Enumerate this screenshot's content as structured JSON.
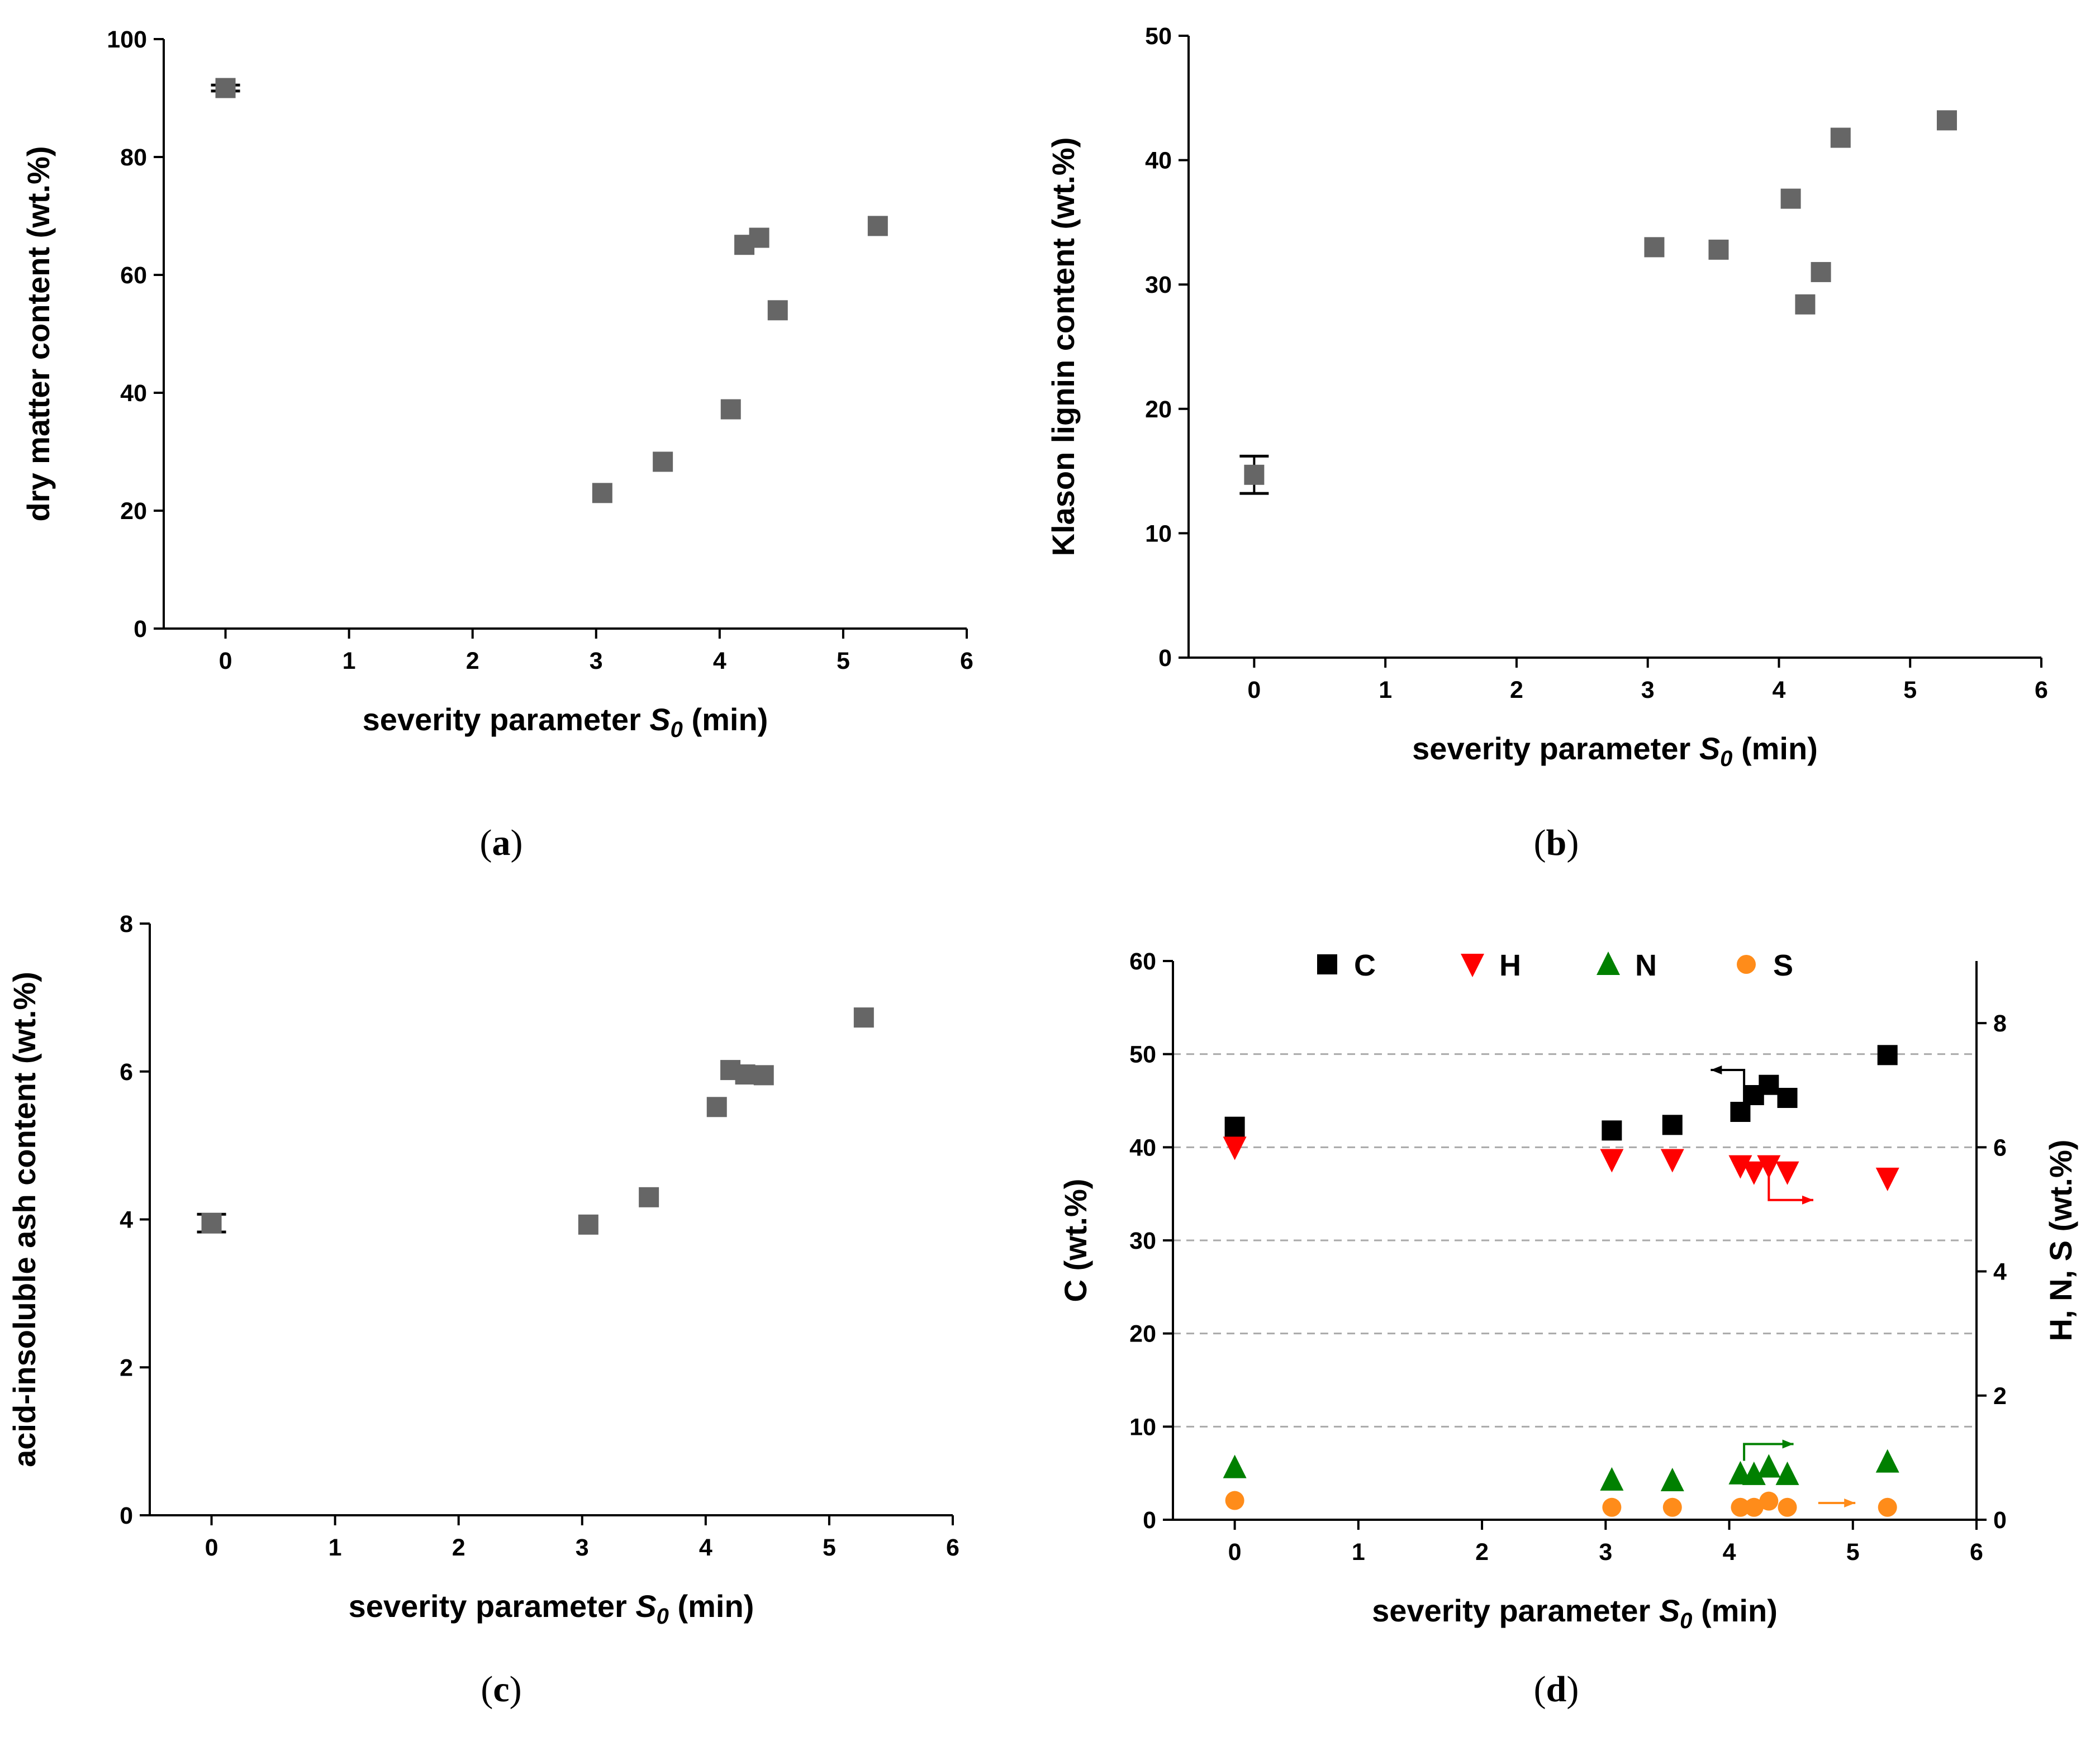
{
  "chart_data": [
    {
      "panel": "a",
      "type": "scatter",
      "panel_label": "(a)",
      "xlabel_prefix": "severity parameter ",
      "xlabel_italic": "S",
      "xlabel_sub": "0",
      "xlabel_suffix": " (min)",
      "ylabel": "dry matter content (wt.%)",
      "xlim": [
        -0.5,
        6
      ],
      "ylim": [
        0,
        100
      ],
      "xticks": [
        0,
        1,
        2,
        3,
        4,
        5,
        6
      ],
      "yticks": [
        0,
        20,
        40,
        60,
        80,
        100
      ],
      "grid": false,
      "marker_color": "#666666",
      "series": [
        {
          "marker": "square",
          "x": [
            0,
            3.05,
            3.54,
            4.09,
            4.2,
            4.32,
            4.47,
            5.28
          ],
          "y": [
            91.7,
            23.0,
            28.3,
            37.2,
            65.1,
            66.3,
            54.0,
            68.3
          ],
          "error": [
            0.5,
            0,
            0,
            0,
            0,
            0,
            0,
            0
          ]
        }
      ]
    },
    {
      "panel": "b",
      "type": "scatter",
      "panel_label": "(b)",
      "xlabel_prefix": "severity parameter ",
      "xlabel_italic": "S",
      "xlabel_sub": "0",
      "xlabel_suffix": " (min)",
      "ylabel": "Klason lignin content (wt.%)",
      "xlim": [
        -0.5,
        6
      ],
      "ylim": [
        0,
        50
      ],
      "xticks": [
        0,
        1,
        2,
        3,
        4,
        5,
        6
      ],
      "yticks": [
        0,
        10,
        20,
        30,
        40,
        50
      ],
      "grid": false,
      "marker_color": "#666666",
      "series": [
        {
          "marker": "square",
          "x": [
            0,
            3.05,
            3.54,
            4.09,
            4.2,
            4.32,
            4.47,
            5.28
          ],
          "y": [
            14.7,
            33.0,
            32.8,
            36.9,
            28.4,
            31.0,
            41.8,
            43.2
          ],
          "error": [
            1.5,
            0,
            0,
            0,
            0,
            0,
            0,
            0
          ]
        }
      ]
    },
    {
      "panel": "c",
      "type": "scatter",
      "panel_label": "(c)",
      "xlabel_prefix": "severity parameter ",
      "xlabel_italic": "S",
      "xlabel_sub": "0",
      "xlabel_suffix": " (min)",
      "ylabel": "acid-insoluble ash content (wt.%)",
      "xlim": [
        -0.5,
        6
      ],
      "ylim": [
        0,
        8
      ],
      "xticks": [
        0,
        1,
        2,
        3,
        4,
        5,
        6
      ],
      "yticks": [
        0,
        2,
        4,
        6,
        8
      ],
      "grid": false,
      "marker_color": "#666666",
      "series": [
        {
          "marker": "square",
          "x": [
            0,
            3.05,
            3.54,
            4.09,
            4.2,
            4.32,
            4.47,
            5.28
          ],
          "y": [
            3.95,
            3.93,
            4.3,
            5.52,
            6.02,
            5.96,
            5.95,
            6.73
          ],
          "error": [
            0.12,
            0,
            0,
            0,
            0,
            0,
            0,
            0
          ]
        }
      ]
    },
    {
      "panel": "d",
      "type": "scatter",
      "panel_label": "(d)",
      "xlabel_prefix": "severity parameter ",
      "xlabel_italic": "S",
      "xlabel_sub": "0",
      "xlabel_suffix": " (min)",
      "ylabel": "C (wt.%)",
      "ylabel_right": "H, N, S (wt.%)",
      "xlim": [
        -0.5,
        6
      ],
      "ylim": [
        0,
        60
      ],
      "ylim_right": [
        0,
        9
      ],
      "xticks": [
        0,
        1,
        2,
        3,
        4,
        5,
        6
      ],
      "yticks": [
        0,
        10,
        20,
        30,
        40,
        50,
        60
      ],
      "yticks_right": [
        0,
        2,
        4,
        6,
        8
      ],
      "grid": true,
      "grid_y": [
        10,
        20,
        30,
        40,
        50
      ],
      "legend_position": "top",
      "series": [
        {
          "name": "C",
          "axis": "left",
          "marker": "square",
          "color": "#000000",
          "x": [
            0,
            3.05,
            3.54,
            4.09,
            4.2,
            4.32,
            4.47,
            5.28
          ],
          "y": [
            42.2,
            41.8,
            42.4,
            43.8,
            45.6,
            46.7,
            45.3,
            49.9
          ]
        },
        {
          "name": "H",
          "axis": "right",
          "marker": "triangle-down",
          "color": "#ff0000",
          "x": [
            0,
            3.05,
            3.54,
            4.09,
            4.2,
            4.32,
            4.47,
            5.28
          ],
          "y": [
            6.0,
            5.8,
            5.8,
            5.7,
            5.6,
            5.7,
            5.6,
            5.5
          ]
        },
        {
          "name": "N",
          "axis": "right",
          "marker": "triangle-up",
          "color": "#008000",
          "x": [
            0,
            3.05,
            3.54,
            4.09,
            4.2,
            4.32,
            4.47,
            5.28
          ],
          "y": [
            0.84,
            0.64,
            0.63,
            0.74,
            0.73,
            0.85,
            0.73,
            0.93
          ]
        },
        {
          "name": "S",
          "axis": "right",
          "marker": "circle",
          "color": "#ff8c1a",
          "x": [
            0,
            3.05,
            3.54,
            4.09,
            4.2,
            4.32,
            4.47,
            5.28
          ],
          "y": [
            0.31,
            0.2,
            0.2,
            0.2,
            0.2,
            0.3,
            0.2,
            0.2
          ]
        }
      ]
    }
  ]
}
